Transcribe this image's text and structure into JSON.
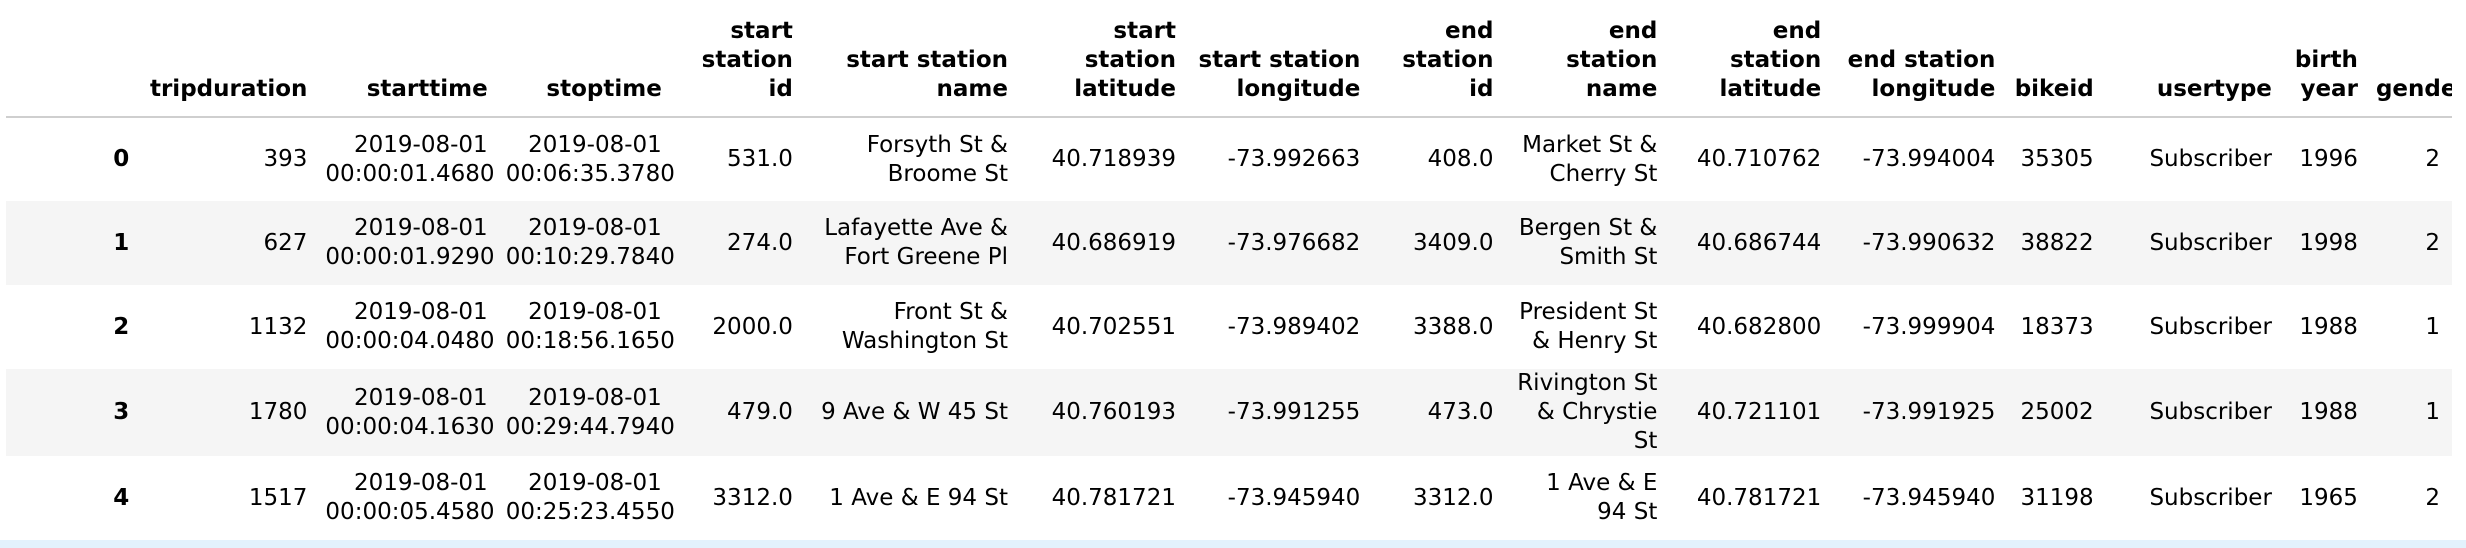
{
  "columns": [
    "tripduration",
    "starttime",
    "stoptime",
    "start station id",
    "start station name",
    "start station latitude",
    "start station longitude",
    "end station id",
    "end station name",
    "end station latitude",
    "end station longitude",
    "bikeid",
    "usertype",
    "birth year",
    "gender"
  ],
  "rows": [
    {
      "index": "0",
      "cells": [
        "393",
        "2019-08-01 00:00:01.4680",
        "2019-08-01 00:06:35.3780",
        "531.0",
        "Forsyth St & Broome St",
        "40.718939",
        "-73.992663",
        "408.0",
        "Market St & Cherry St",
        "40.710762",
        "-73.994004",
        "35305",
        "Subscriber",
        "1996",
        "2"
      ]
    },
    {
      "index": "1",
      "cells": [
        "627",
        "2019-08-01 00:00:01.9290",
        "2019-08-01 00:10:29.7840",
        "274.0",
        "Lafayette Ave & Fort Greene Pl",
        "40.686919",
        "-73.976682",
        "3409.0",
        "Bergen St & Smith St",
        "40.686744",
        "-73.990632",
        "38822",
        "Subscriber",
        "1998",
        "2"
      ]
    },
    {
      "index": "2",
      "cells": [
        "1132",
        "2019-08-01 00:00:04.0480",
        "2019-08-01 00:18:56.1650",
        "2000.0",
        "Front St & Washington St",
        "40.702551",
        "-73.989402",
        "3388.0",
        "President St & Henry St",
        "40.682800",
        "-73.999904",
        "18373",
        "Subscriber",
        "1988",
        "1"
      ]
    },
    {
      "index": "3",
      "cells": [
        "1780",
        "2019-08-01 00:00:04.1630",
        "2019-08-01 00:29:44.7940",
        "479.0",
        "9 Ave & W 45 St",
        "40.760193",
        "-73.991255",
        "473.0",
        "Rivington St & Chrystie St",
        "40.721101",
        "-73.991925",
        "25002",
        "Subscriber",
        "1988",
        "1"
      ]
    },
    {
      "index": "4",
      "cells": [
        "1517",
        "2019-08-01 00:00:05.4580",
        "2019-08-01 00:25:23.4550",
        "3312.0",
        "1 Ave & E 94 St",
        "40.781721",
        "-73.945940",
        "3312.0",
        "1 Ave & E 94 St",
        "40.781721",
        "-73.945940",
        "31198",
        "Subscriber",
        "1965",
        "2"
      ]
    }
  ]
}
